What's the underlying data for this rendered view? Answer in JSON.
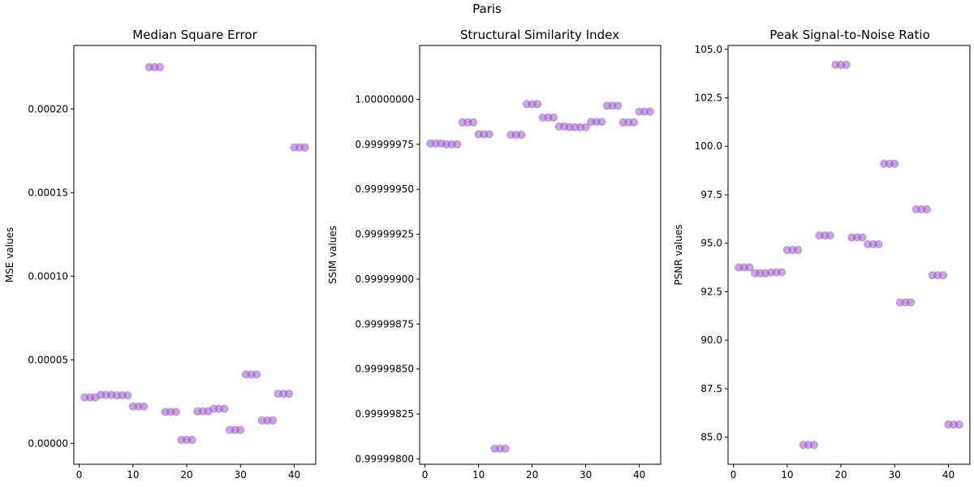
{
  "figure": {
    "suptitle": "Paris"
  },
  "chart_data": [
    {
      "type": "scatter",
      "title": "Median Square Error",
      "xlabel": "",
      "ylabel": "MSE values",
      "xlim": [
        -1,
        44
      ],
      "ylim": [
        -1.25e-05,
        0.000238
      ],
      "xticks": [
        0,
        10,
        20,
        30,
        40
      ],
      "xtick_labels": [
        "0",
        "10",
        "20",
        "30",
        "40"
      ],
      "yticks": [
        0,
        5e-05,
        0.0001,
        0.00015,
        0.0002
      ],
      "ytick_labels": [
        "0.00000",
        "0.00005",
        "0.00010",
        "0.00015",
        "0.00020"
      ],
      "grid": false,
      "marker_color": "#9b59c6",
      "x": [
        1,
        2,
        3,
        4,
        5,
        6,
        7,
        8,
        9,
        10,
        11,
        12,
        13,
        14,
        15,
        16,
        17,
        18,
        19,
        20,
        21,
        22,
        23,
        24,
        25,
        26,
        27,
        28,
        29,
        30,
        31,
        32,
        33,
        34,
        35,
        36,
        37,
        38,
        39,
        40,
        41,
        42
      ],
      "y": [
        2.75e-05,
        2.75e-05,
        2.75e-05,
        2.9e-05,
        2.9e-05,
        2.9e-05,
        2.87e-05,
        2.87e-05,
        2.87e-05,
        2.21e-05,
        2.21e-05,
        2.21e-05,
        0.000225,
        0.000225,
        0.000225,
        1.88e-05,
        1.88e-05,
        1.88e-05,
        2.1e-06,
        2.1e-06,
        2.1e-06,
        1.92e-05,
        1.92e-05,
        1.92e-05,
        2.07e-05,
        2.07e-05,
        2.07e-05,
        8e-06,
        8e-06,
        8e-06,
        4.12e-05,
        4.12e-05,
        4.12e-05,
        1.37e-05,
        1.37e-05,
        1.37e-05,
        2.97e-05,
        2.97e-05,
        2.97e-05,
        0.000177,
        0.000177,
        0.000177
      ]
    },
    {
      "type": "scatter",
      "title": "Structural Similarity Index",
      "xlabel": "",
      "ylabel": "SSIM values",
      "xlim": [
        -1,
        44
      ],
      "ylim": [
        0.99999797,
        1.0000003
      ],
      "xticks": [
        0,
        10,
        20,
        30,
        40
      ],
      "xtick_labels": [
        "0",
        "10",
        "20",
        "30",
        "40"
      ],
      "yticks": [
        0.999998,
        0.99999825,
        0.9999985,
        0.99999875,
        0.999999,
        0.99999925,
        0.9999995,
        0.99999975,
        1.0
      ],
      "ytick_labels": [
        "0.99999800",
        "0.99999825",
        "0.99999850",
        "0.99999875",
        "0.99999900",
        "0.99999925",
        "0.99999950",
        "0.99999975",
        "1.00000000"
      ],
      "grid": false,
      "marker_color": "#9b59c6",
      "x": [
        1,
        2,
        3,
        4,
        5,
        6,
        7,
        8,
        9,
        10,
        11,
        12,
        13,
        14,
        15,
        16,
        17,
        18,
        19,
        20,
        21,
        22,
        23,
        24,
        25,
        26,
        27,
        28,
        29,
        30,
        31,
        32,
        33,
        34,
        35,
        36,
        37,
        38,
        39,
        40,
        41,
        42
      ],
      "y": [
        0.999999755,
        0.999999755,
        0.999999755,
        0.99999975,
        0.99999975,
        0.99999975,
        0.999999872,
        0.999999872,
        0.999999872,
        0.999999806,
        0.999999806,
        0.999999806,
        0.999998057,
        0.999998057,
        0.999998057,
        0.999999803,
        0.999999803,
        0.999999803,
        0.999999974,
        0.999999974,
        0.999999974,
        0.999999899,
        0.999999899,
        0.999999899,
        0.999999849,
        0.999999849,
        0.999999845,
        0.999999845,
        0.999999845,
        0.999999845,
        0.999999875,
        0.999999875,
        0.999999875,
        0.999999965,
        0.999999965,
        0.999999965,
        0.999999872,
        0.999999872,
        0.999999872,
        0.999999932,
        0.999999932,
        0.999999932
      ]
    },
    {
      "type": "scatter",
      "title": "Peak Signal-to-Noise Ratio",
      "xlabel": "",
      "ylabel": "PSNR values",
      "xlim": [
        -1,
        44
      ],
      "ylim": [
        83.6,
        105.2
      ],
      "xticks": [
        0,
        10,
        20,
        30,
        40
      ],
      "xtick_labels": [
        "0",
        "10",
        "20",
        "30",
        "40"
      ],
      "yticks": [
        85,
        87.5,
        90,
        92.5,
        95,
        97.5,
        100,
        102.5,
        105
      ],
      "ytick_labels": [
        "85.0",
        "87.5",
        "90.0",
        "92.5",
        "95.0",
        "97.5",
        "100.0",
        "102.5",
        "105.0"
      ],
      "grid": false,
      "marker_color": "#9b59c6",
      "x": [
        1,
        2,
        3,
        4,
        5,
        6,
        7,
        8,
        9,
        10,
        11,
        12,
        13,
        14,
        15,
        16,
        17,
        18,
        19,
        20,
        21,
        22,
        23,
        24,
        25,
        26,
        27,
        28,
        29,
        30,
        31,
        32,
        33,
        34,
        35,
        36,
        37,
        38,
        39,
        40,
        41,
        42
      ],
      "y": [
        93.75,
        93.75,
        93.75,
        93.45,
        93.45,
        93.45,
        93.5,
        93.5,
        93.5,
        94.65,
        94.65,
        94.65,
        84.6,
        84.6,
        84.6,
        95.4,
        95.4,
        95.4,
        104.2,
        104.2,
        104.2,
        95.3,
        95.3,
        95.3,
        94.95,
        94.95,
        94.95,
        99.1,
        99.1,
        99.1,
        91.95,
        91.95,
        91.95,
        96.75,
        96.75,
        96.75,
        93.35,
        93.35,
        93.35,
        85.65,
        85.65,
        85.65
      ]
    }
  ]
}
